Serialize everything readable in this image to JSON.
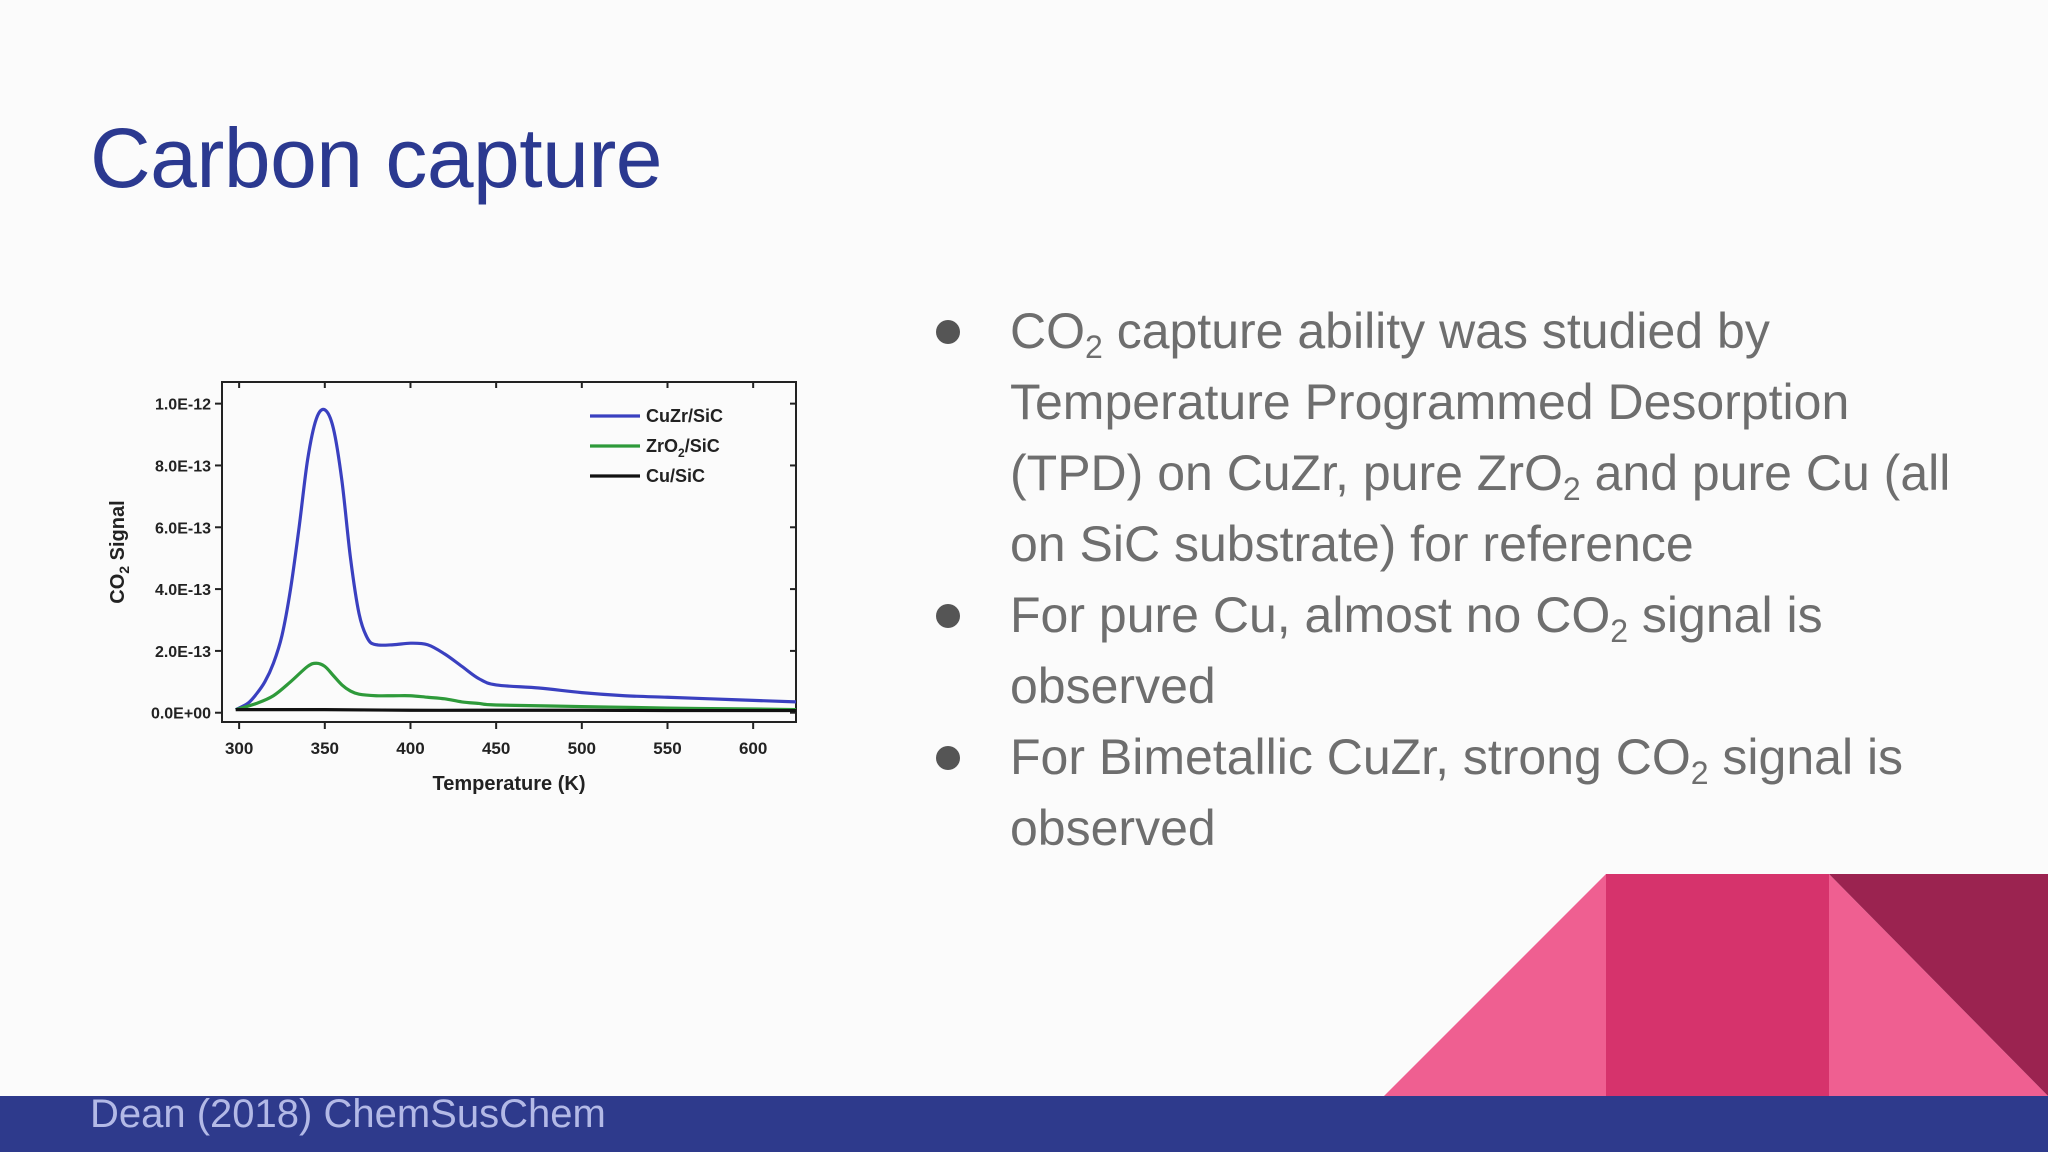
{
  "slide": {
    "title": "Carbon capture",
    "footer": "Dean (2018) ChemSusChem"
  },
  "bullets": [
    {
      "parts": [
        {
          "t": "CO"
        },
        {
          "sub": "2"
        },
        {
          "t": " capture ability was studied by Temperature Programmed Desorption (TPD) on CuZr, pure ZrO"
        },
        {
          "sub": "2"
        },
        {
          "t": " and pure Cu (all on SiC substrate) for reference"
        }
      ]
    },
    {
      "parts": [
        {
          "t": "For pure Cu, almost no CO"
        },
        {
          "sub": "2"
        },
        {
          "t": " signal is observed"
        }
      ]
    },
    {
      "parts": [
        {
          "t": "For Bimetallic CuZr, strong CO"
        },
        {
          "sub": "2"
        },
        {
          "t": " signal is observed"
        }
      ]
    }
  ],
  "colors": {
    "title": "#2b3990",
    "footer_bar": "#2e3a8c",
    "pink_light": "#ef5f91",
    "pink_mid": "#d6336c",
    "plum": "#9b2350"
  },
  "chart_data": {
    "type": "line",
    "xlabel": "Temperature (K)",
    "ylabel_main": "CO",
    "ylabel_sub": "2",
    "ylabel_rest": " Signal",
    "xlim": [
      290,
      625
    ],
    "ylim": [
      -3e-14,
      1.07e-12
    ],
    "xticks": [
      300,
      350,
      400,
      450,
      500,
      550,
      600
    ],
    "yticks": [
      {
        "v": 0,
        "label": "0.0E+00"
      },
      {
        "v": 2e-13,
        "label": "2.0E-13"
      },
      {
        "v": 4e-13,
        "label": "4.0E-13"
      },
      {
        "v": 6e-13,
        "label": "6.0E-13"
      },
      {
        "v": 8e-13,
        "label": "8.0E-13"
      },
      {
        "v": 1e-12,
        "label": "1.0E-12"
      }
    ],
    "legend_position": "top-right",
    "series": [
      {
        "name": "CuZr/SiC",
        "legend_main": "CuZr/SiC",
        "color": "#3a40c0",
        "x": [
          298,
          305,
          310,
          315,
          320,
          325,
          330,
          335,
          340,
          345,
          350,
          355,
          360,
          365,
          370,
          375,
          380,
          390,
          400,
          410,
          420,
          430,
          440,
          450,
          475,
          500,
          525,
          550,
          575,
          600,
          625
        ],
        "y": [
          1e-14,
          3e-14,
          6e-14,
          1e-13,
          1.6e-13,
          2.5e-13,
          4e-13,
          6e-13,
          8.2e-13,
          9.5e-13,
          9.8e-13,
          9.2e-13,
          7.5e-13,
          5e-13,
          3.2e-13,
          2.4e-13,
          2.2e-13,
          2.2e-13,
          2.25e-13,
          2.2e-13,
          1.9e-13,
          1.5e-13,
          1.1e-13,
          9e-14,
          8e-14,
          6.5e-14,
          5.5e-14,
          5e-14,
          4.5e-14,
          4e-14,
          3.5e-14
        ]
      },
      {
        "name": "ZrO2/SiC",
        "legend_main": "ZrO",
        "legend_sub": "2",
        "legend_rest": "/SiC",
        "color": "#2e9a3a",
        "x": [
          298,
          310,
          320,
          330,
          340,
          345,
          350,
          355,
          360,
          365,
          370,
          380,
          390,
          400,
          410,
          420,
          430,
          440,
          450,
          500,
          550,
          600,
          625
        ],
        "y": [
          1e-14,
          3e-14,
          5.5e-14,
          1e-13,
          1.5e-13,
          1.6e-13,
          1.5e-13,
          1.2e-13,
          9e-14,
          7e-14,
          6e-14,
          5.5e-14,
          5.5e-14,
          5.5e-14,
          5e-14,
          4.5e-14,
          3.5e-14,
          3e-14,
          2.5e-14,
          2e-14,
          1.5e-14,
          1.2e-14,
          1e-14
        ]
      },
      {
        "name": "Cu/SiC",
        "legend_main": "Cu/SiC",
        "color": "#111111",
        "x": [
          298,
          350,
          400,
          450,
          500,
          550,
          600,
          625
        ],
        "y": [
          1e-14,
          1e-14,
          8e-15,
          8e-15,
          8e-15,
          7e-15,
          7e-15,
          7e-15
        ]
      }
    ]
  }
}
